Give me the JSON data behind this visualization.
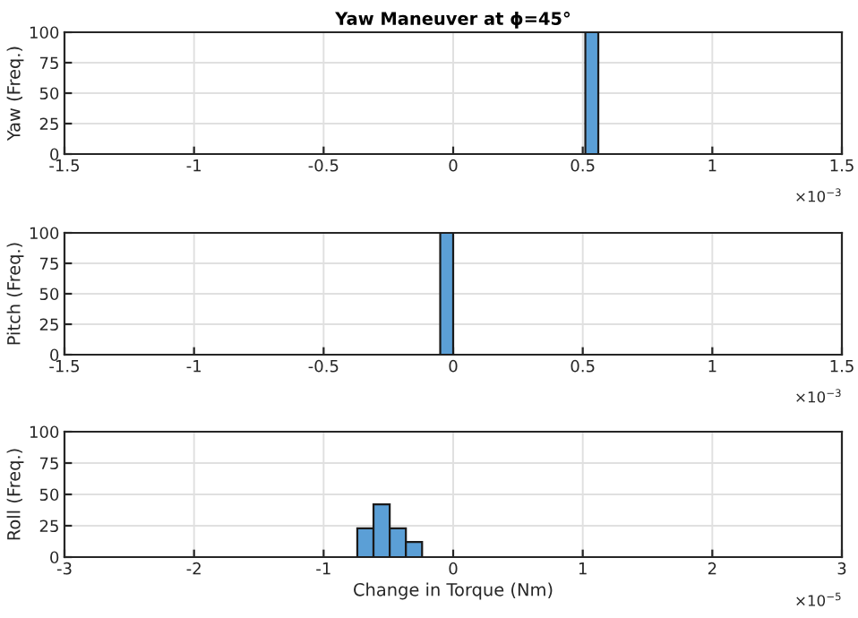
{
  "chart_data": [
    {
      "type": "histogram",
      "title": "Yaw Maneuver at ϕ=45°",
      "ylabel": "Yaw (Freq.)",
      "bins": [
        0.51,
        0.56
      ],
      "values": [
        100
      ],
      "color": "#5b9fd6",
      "xlim": [
        -1.5,
        1.5
      ],
      "xticks": [
        -1.5,
        -1,
        -0.5,
        0,
        0.5,
        1,
        1.5
      ],
      "ylim": [
        0,
        100
      ],
      "yticks": [
        0,
        25,
        50,
        75,
        100
      ],
      "grid": true,
      "annotations": [
        "×10$^{−3}$"
      ]
    },
    {
      "type": "histogram",
      "ylabel": "Pitch (Freq.)",
      "bins": [
        -0.05,
        0
      ],
      "values": [
        100
      ],
      "color": "#5b9fd6",
      "xlim": [
        -1.5,
        1.5
      ],
      "xticks": [
        -1.5,
        -1,
        -0.5,
        0,
        0.5,
        1,
        1.5
      ],
      "ylim": [
        0,
        100
      ],
      "yticks": [
        0,
        25,
        50,
        75,
        100
      ],
      "grid": true,
      "annotations": [
        "×10$^{−3}$"
      ]
    },
    {
      "type": "histogram",
      "ylabel": "Roll (Freq.)",
      "xlabel": "Change in Torque (Nm)",
      "bins": [
        -0.74,
        -0.615,
        -0.49,
        -0.365,
        -0.24
      ],
      "values": [
        23,
        42,
        23,
        12
      ],
      "color": "#5b9fd6",
      "xlim": [
        -3,
        3
      ],
      "xticks": [
        -3,
        -2,
        -1,
        0,
        1,
        2,
        3
      ],
      "ylim": [
        0,
        100
      ],
      "yticks": [
        0,
        25,
        50,
        75,
        100
      ],
      "grid": true,
      "annotations": [
        "×10$^{−5}$"
      ]
    }
  ]
}
